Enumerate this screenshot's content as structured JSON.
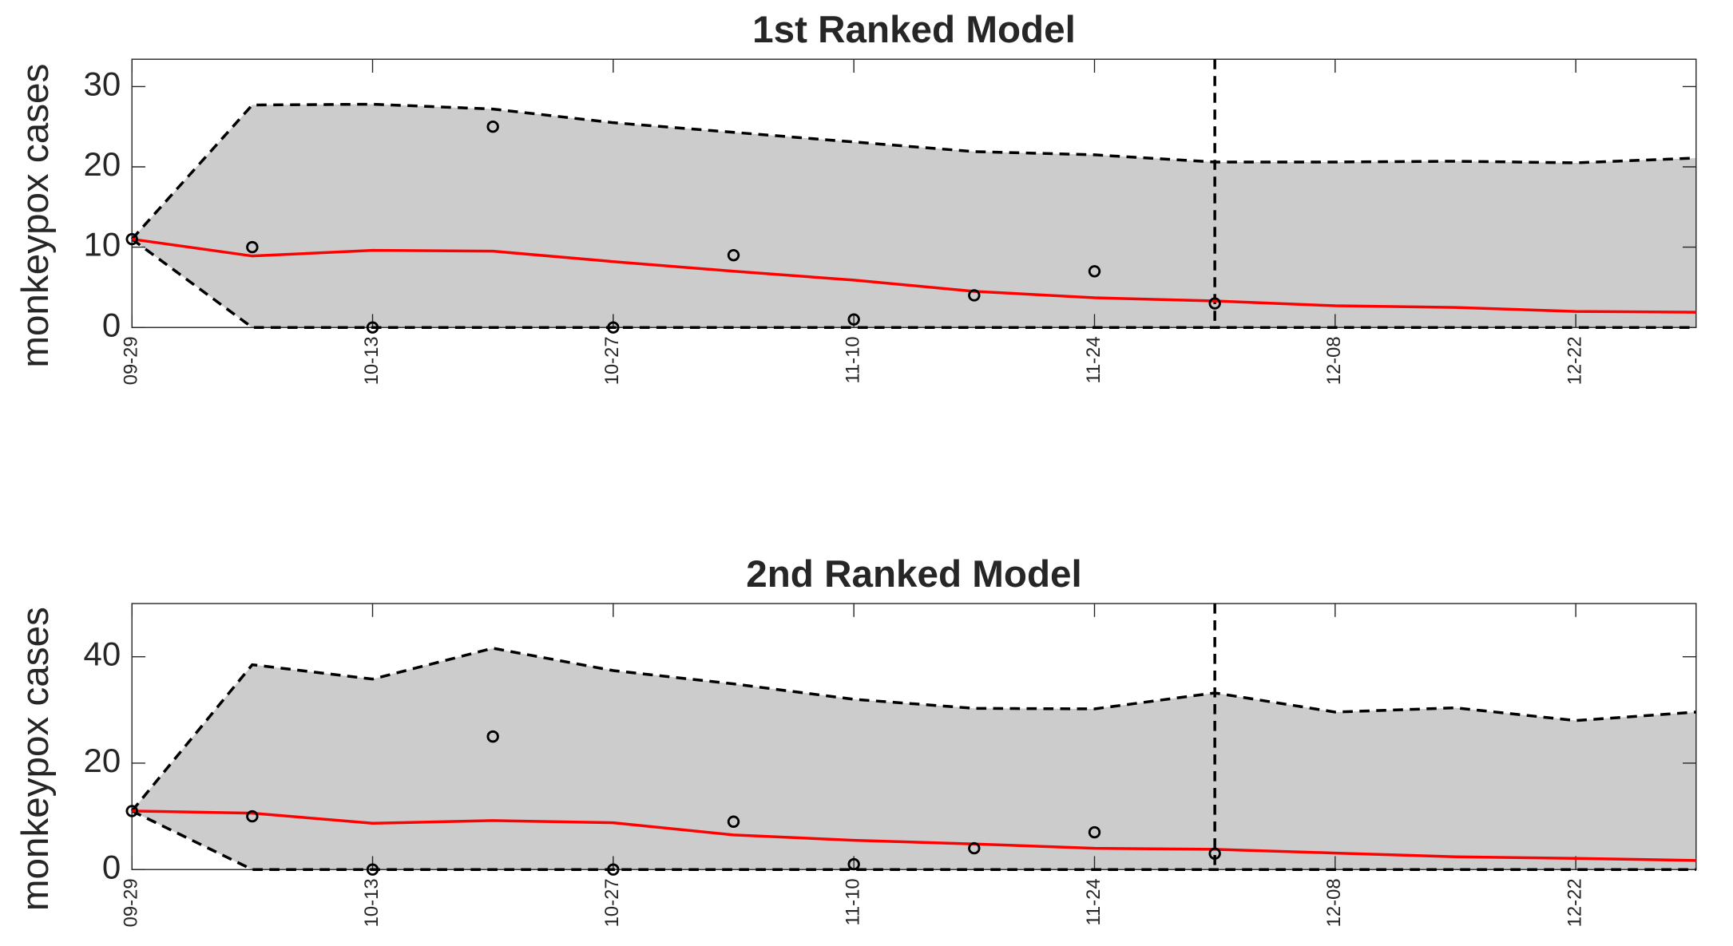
{
  "chart_data": [
    {
      "type": "line",
      "title": "1st Ranked Model",
      "y_label": "monkeypox cases",
      "categories": [
        "09-29",
        null,
        "10-13",
        null,
        "10-27",
        null,
        "11-10",
        null,
        "11-24",
        null,
        "12-08",
        null,
        "12-22",
        null
      ],
      "ylim": [
        0,
        33.4
      ],
      "yticks": [
        0,
        10,
        20,
        30
      ],
      "fill": "#cccccc",
      "vline_x": 9,
      "series": [
        {
          "style": "dashed",
          "color": "#000000",
          "values": [
            11,
            27.7,
            27.8,
            27.2,
            25.5,
            24.3,
            23.1,
            21.9,
            21.5,
            20.6,
            20.6,
            20.7,
            20.5,
            21.1
          ]
        },
        {
          "style": "dashed",
          "color": "#000000",
          "values": [
            11,
            0,
            0,
            0,
            0,
            0,
            0,
            0,
            0,
            0,
            0,
            0,
            0,
            0
          ]
        },
        {
          "style": "solid",
          "color": "#ff0000",
          "values": [
            11,
            8.9,
            9.6,
            9.5,
            8.2,
            7.0,
            5.9,
            4.5,
            3.7,
            3.3,
            2.7,
            2.5,
            2.0,
            1.9
          ]
        },
        {
          "style": "markers",
          "color": "#000000",
          "values": [
            11,
            10,
            0,
            25,
            0,
            9,
            1,
            4,
            7,
            3,
            null,
            null,
            null,
            null
          ]
        }
      ]
    },
    {
      "type": "line",
      "title": "2nd Ranked Model",
      "y_label": "monkeypox cases",
      "categories": [
        "09-29",
        null,
        "10-13",
        null,
        "10-27",
        null,
        "11-10",
        null,
        "11-24",
        null,
        "12-08",
        null,
        "12-22",
        null
      ],
      "ylim": [
        0,
        50
      ],
      "yticks": [
        0,
        20,
        40
      ],
      "fill": "#cccccc",
      "vline_x": 9,
      "series": [
        {
          "style": "dashed",
          "color": "#000000",
          "values": [
            11,
            38.5,
            35.8,
            41.6,
            37.4,
            34.9,
            32.0,
            30.3,
            30.2,
            33.2,
            29.6,
            30.4,
            28.0,
            29.6
          ]
        },
        {
          "style": "dashed",
          "color": "#000000",
          "values": [
            11,
            0,
            0,
            0,
            0,
            0,
            0,
            0,
            0,
            0,
            0,
            0,
            0,
            0
          ]
        },
        {
          "style": "solid",
          "color": "#ff0000",
          "values": [
            11,
            10.6,
            8.7,
            9.2,
            8.8,
            6.5,
            5.5,
            4.8,
            4.0,
            3.8,
            3.1,
            2.4,
            2.1,
            1.7
          ]
        },
        {
          "style": "markers",
          "color": "#000000",
          "values": [
            11,
            10,
            0,
            25,
            0,
            9,
            1,
            4,
            7,
            3,
            null,
            null,
            null,
            null
          ]
        }
      ]
    }
  ]
}
